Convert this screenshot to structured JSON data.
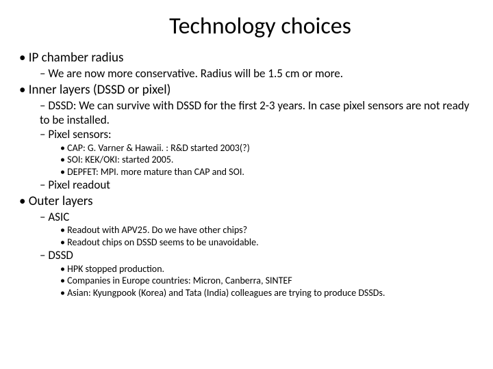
{
  "background_color": "#ffffff",
  "text_color": "#000000",
  "font_family": "Calibri, Arial, sans-serif",
  "title": {
    "text": "Technology choices",
    "fontsize": 34
  },
  "bullets": {
    "lvl1_fontsize": 19,
    "lvl2_fontsize": 17,
    "lvl3_fontsize": 14,
    "items": [
      {
        "text": "IP chamber radius",
        "children": [
          {
            "text": "We are now more conservative. Radius will be 1.5 cm or more."
          }
        ]
      },
      {
        "text": "Inner layers (DSSD or pixel)",
        "children": [
          {
            "text": "DSSD: We can survive with DSSD for the first 2-3 years. In case pixel sensors are not ready to be installed."
          },
          {
            "text": "Pixel sensors:",
            "children": [
              {
                "text": "CAP: G. Varner & Hawaii. : R&D started 2003(?)"
              },
              {
                "text": "SOI: KEK/OKI: started 2005."
              },
              {
                "text": "DEPFET: MPI.  more mature than CAP and SOI."
              }
            ]
          },
          {
            "text": "Pixel readout"
          }
        ]
      },
      {
        "text": "Outer layers",
        "children": [
          {
            "text": "ASIC",
            "children": [
              {
                "text": "Readout with APV25.  Do we have other chips?"
              },
              {
                "text": "Readout chips on DSSD seems to be unavoidable."
              }
            ]
          },
          {
            "text": "DSSD",
            "children": [
              {
                "text": "HPK stopped production."
              },
              {
                "text": "Companies in Europe countries: Micron, Canberra, SINTEF"
              },
              {
                "text": "Asian: Kyungpook (Korea) and Tata (India) colleagues are trying to produce DSSDs."
              }
            ]
          }
        ]
      }
    ]
  }
}
